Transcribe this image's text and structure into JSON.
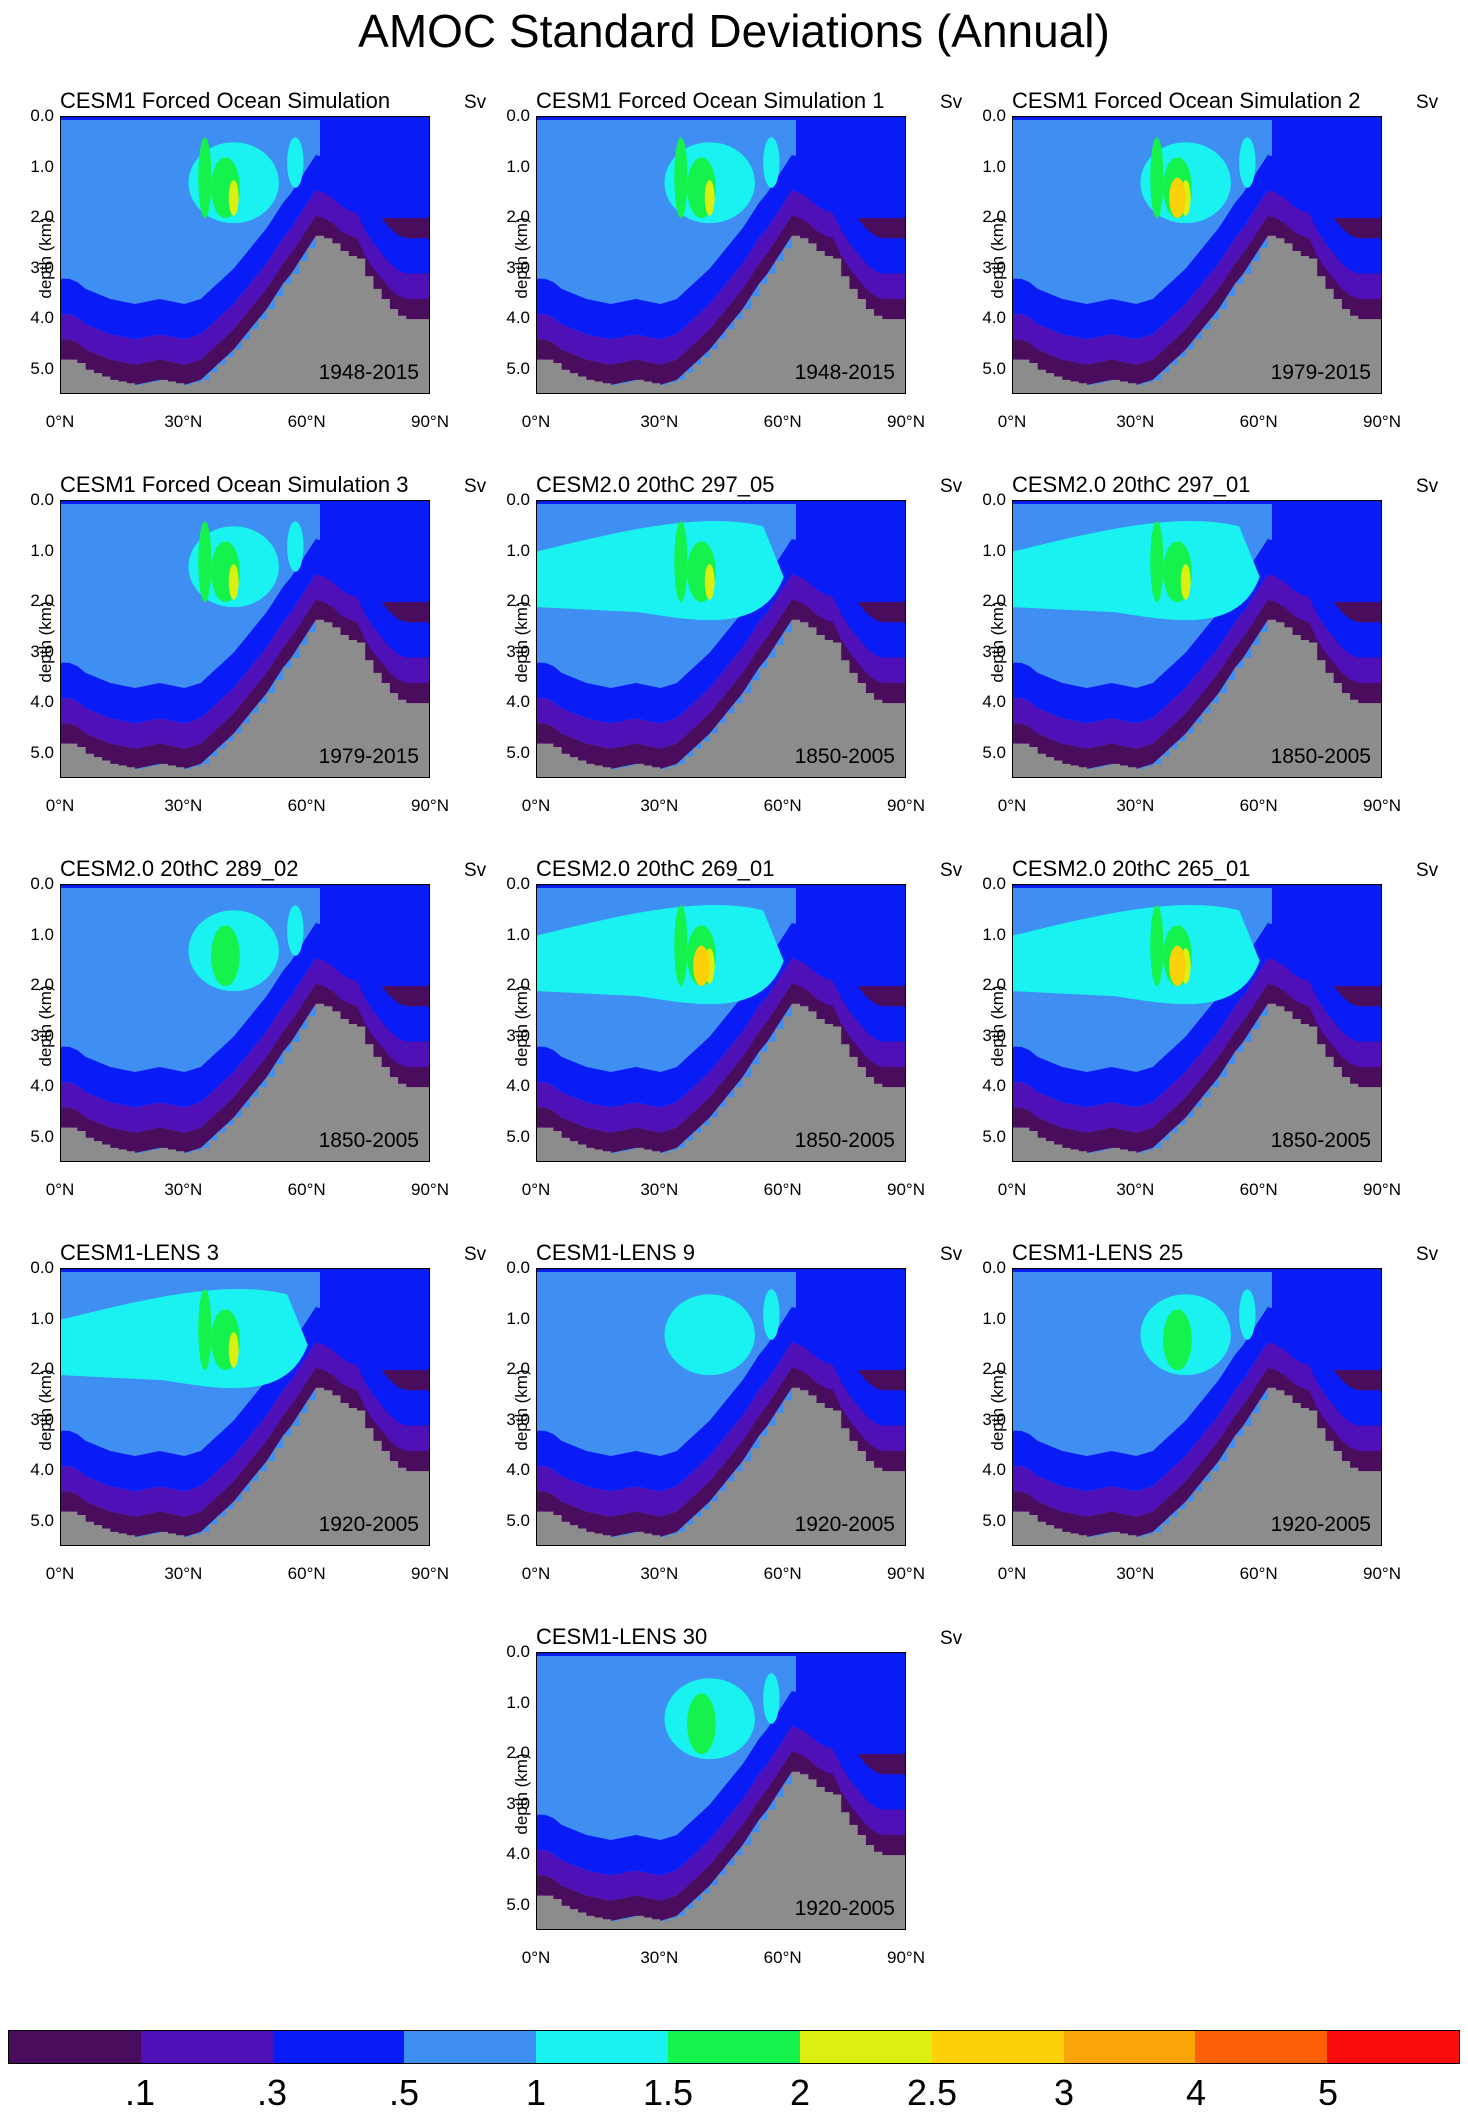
{
  "title": "AMOC Standard Deviations (Annual)",
  "units": "Sv",
  "yticks": [
    "0.0",
    "1.0",
    "2.0",
    "3.0",
    "4.0",
    "5.0"
  ],
  "xticks": [
    "0°N",
    "30°N",
    "60°N",
    "90°N"
  ],
  "ylabel": "depth (km)",
  "colorbar": {
    "colors": [
      "#4a0c5c",
      "#5010b8",
      "#0a1cf5",
      "#3f8ef2",
      "#19f2f0",
      "#16f24c",
      "#dbf010",
      "#fcd10a",
      "#fca50a",
      "#fc610a",
      "#fc0d0d"
    ],
    "labels": [
      ".1",
      ".3",
      ".5",
      "1",
      "1.5",
      "2",
      "2.5",
      "3",
      "4",
      "5"
    ]
  },
  "panels": [
    {
      "title": "CESM1 Forced Ocean Simulation",
      "period": "1948-2015"
    },
    {
      "title": "CESM1 Forced Ocean Simulation 1",
      "period": "1948-2015"
    },
    {
      "title": "CESM1 Forced Ocean Simulation 2",
      "period": "1979-2015"
    },
    {
      "title": "CESM1 Forced Ocean Simulation 3",
      "period": "1979-2015"
    },
    {
      "title": "CESM2.0 20thC 297_05",
      "period": "1850-2005"
    },
    {
      "title": "CESM2.0 20thC 297_01",
      "period": "1850-2005"
    },
    {
      "title": "CESM2.0 20thC 289_02",
      "period": "1850-2005"
    },
    {
      "title": "CESM2.0 20thC 269_01",
      "period": "1850-2005"
    },
    {
      "title": "CESM2.0 20thC 265_01",
      "period": "1850-2005"
    },
    {
      "title": "CESM1-LENS 3",
      "period": "1920-2005"
    },
    {
      "title": "CESM1-LENS 9",
      "period": "1920-2005"
    },
    {
      "title": "CESM1-LENS 25",
      "period": "1920-2005"
    },
    {
      "title": "CESM1-LENS 30",
      "period": "1920-2005"
    }
  ],
  "chart_data": {
    "type": "heatmap",
    "title": "AMOC Standard Deviations (Annual)",
    "xlabel": "",
    "ylabel": "depth (km)",
    "xlim": [
      0,
      90
    ],
    "ylim": [
      5.5,
      0
    ],
    "x_ticks": [
      "0°N",
      "30°N",
      "60°N",
      "90°N"
    ],
    "y_ticks": [
      0.0,
      1.0,
      2.0,
      3.0,
      4.0,
      5.0
    ],
    "units": "Sv",
    "contour_levels": [
      0.1,
      0.3,
      0.5,
      1,
      1.5,
      2,
      2.5,
      3,
      4,
      5
    ],
    "series": [
      {
        "name": "CESM1 Forced Ocean Simulation",
        "period": "1948-2015",
        "max_std": 2.5
      },
      {
        "name": "CESM1 Forced Ocean Simulation 1",
        "period": "1948-2015",
        "max_std": 2.5
      },
      {
        "name": "CESM1 Forced Ocean Simulation 2",
        "period": "1979-2015",
        "max_std": 3
      },
      {
        "name": "CESM1 Forced Ocean Simulation 3",
        "period": "1979-2015",
        "max_std": 2.5
      },
      {
        "name": "CESM2.0 20thC 297_05",
        "period": "1850-2005",
        "max_std": 2.5
      },
      {
        "name": "CESM2.0 20thC 297_01",
        "period": "1850-2005",
        "max_std": 2.5
      },
      {
        "name": "CESM2.0 20thC 289_02",
        "period": "1850-2005",
        "max_std": 2
      },
      {
        "name": "CESM2.0 20thC 269_01",
        "period": "1850-2005",
        "max_std": 3
      },
      {
        "name": "CESM2.0 20thC 265_01",
        "period": "1850-2005",
        "max_std": 3
      },
      {
        "name": "CESM1-LENS 3",
        "period": "1920-2005",
        "max_std": 2.5
      },
      {
        "name": "CESM1-LENS 9",
        "period": "1920-2005",
        "max_std": 1.5
      },
      {
        "name": "CESM1-LENS 25",
        "period": "1920-2005",
        "max_std": 2
      },
      {
        "name": "CESM1-LENS 30",
        "period": "1920-2005",
        "max_std": 2
      }
    ]
  }
}
